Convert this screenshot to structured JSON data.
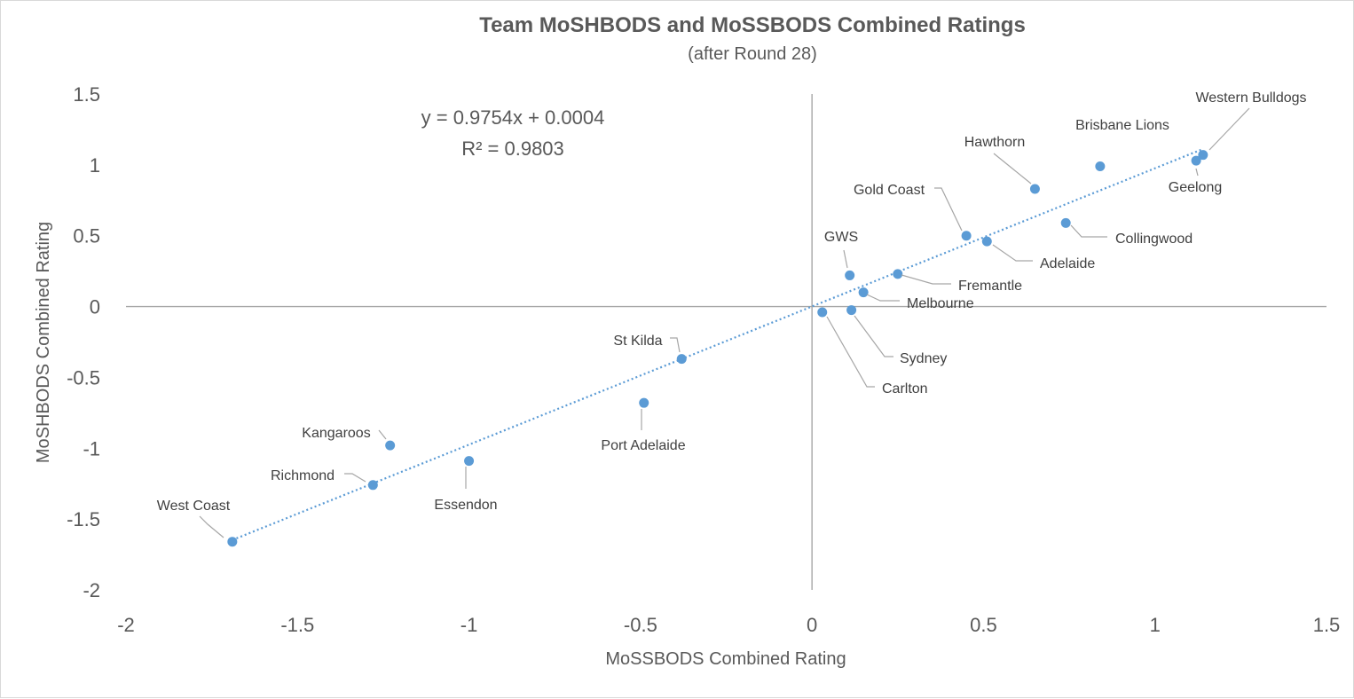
{
  "chart_data": {
    "type": "scatter",
    "title": "Team MoSHBODS and MoSSBODS Combined Ratings",
    "subtitle": "(after Round 28)",
    "xlabel": "MoSSBODS Combined Rating",
    "ylabel": "MoSHBODS Combined Rating",
    "xlim": [
      -2,
      1.5
    ],
    "ylim": [
      -2,
      1.5
    ],
    "x_ticks": [
      "-2",
      "-1.5",
      "-1",
      "-0.5",
      "0",
      "0.5",
      "1",
      "1.5"
    ],
    "y_ticks": [
      "1.5",
      "1",
      "0.5",
      "0",
      "-0.5",
      "-1",
      "-1.5",
      "-2"
    ],
    "trendline": {
      "slope": 0.9754,
      "intercept": 0.0004,
      "r_squared": 0.9803,
      "equation_text": "y = 0.9754x + 0.0004",
      "r2_text": "R² = 0.9803"
    },
    "points": [
      {
        "team": "Western Bulldogs",
        "x": 1.14,
        "y": 1.07
      },
      {
        "team": "Geelong",
        "x": 1.12,
        "y": 1.03
      },
      {
        "team": "Brisbane Lions",
        "x": 0.84,
        "y": 0.99
      },
      {
        "team": "Hawthorn",
        "x": 0.65,
        "y": 0.83
      },
      {
        "team": "Collingwood",
        "x": 0.74,
        "y": 0.59
      },
      {
        "team": "Gold Coast",
        "x": 0.45,
        "y": 0.5
      },
      {
        "team": "Adelaide",
        "x": 0.51,
        "y": 0.46
      },
      {
        "team": "Fremantle",
        "x": 0.25,
        "y": 0.23
      },
      {
        "team": "GWS",
        "x": 0.11,
        "y": 0.22
      },
      {
        "team": "Melbourne",
        "x": 0.15,
        "y": 0.1
      },
      {
        "team": "Sydney",
        "x": 0.115,
        "y": -0.025
      },
      {
        "team": "Carlton",
        "x": 0.03,
        "y": -0.04
      },
      {
        "team": "St Kilda",
        "x": -0.38,
        "y": -0.37
      },
      {
        "team": "Port Adelaide",
        "x": -0.49,
        "y": -0.68
      },
      {
        "team": "Kangaroos",
        "x": -1.23,
        "y": -0.98
      },
      {
        "team": "Essendon",
        "x": -1.0,
        "y": -1.09
      },
      {
        "team": "Richmond",
        "x": -1.28,
        "y": -1.26
      },
      {
        "team": "West Coast",
        "x": -1.69,
        "y": -1.66
      }
    ]
  }
}
